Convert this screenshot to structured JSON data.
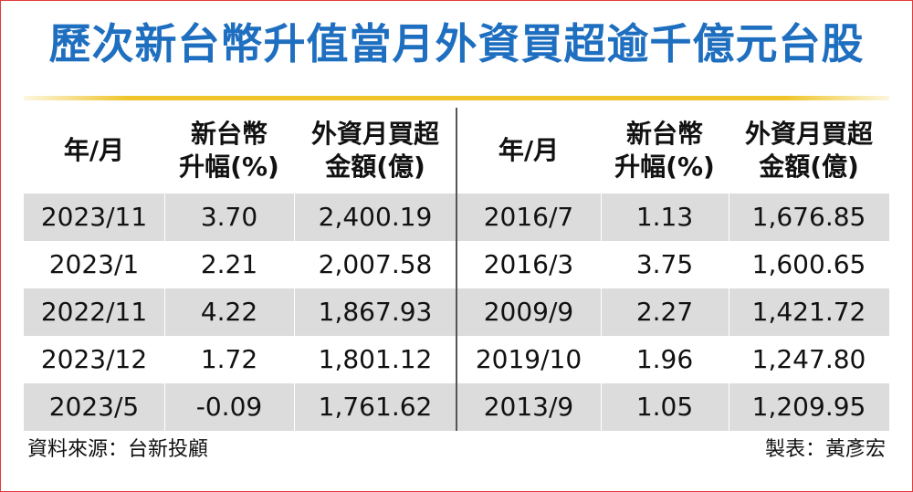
{
  "title": "歷次新台幣升值當月外資買超逾千億元台股",
  "headers": {
    "period": "年/月",
    "appreciation": "新台幣\n升幅(%)",
    "net_buy": "外資月買超\n金額(億)"
  },
  "left_rows": [
    {
      "period": "2023/11",
      "appreciation": "3.70",
      "net_buy": "2,400.19"
    },
    {
      "period": "2023/1",
      "appreciation": "2.21",
      "net_buy": "2,007.58"
    },
    {
      "period": "2022/11",
      "appreciation": "4.22",
      "net_buy": "1,867.93"
    },
    {
      "period": "2023/12",
      "appreciation": "1.72",
      "net_buy": "1,801.12"
    },
    {
      "period": "2023/5",
      "appreciation": "-0.09",
      "net_buy": "1,761.62"
    }
  ],
  "right_rows": [
    {
      "period": "2016/7",
      "appreciation": "1.13",
      "net_buy": "1,676.85"
    },
    {
      "period": "2016/3",
      "appreciation": "3.75",
      "net_buy": "1,600.65"
    },
    {
      "period": "2009/9",
      "appreciation": "2.27",
      "net_buy": "1,421.72"
    },
    {
      "period": "2019/10",
      "appreciation": "1.96",
      "net_buy": "1,247.80"
    },
    {
      "period": "2013/9",
      "appreciation": "1.05",
      "net_buy": "1,209.95"
    }
  ],
  "footer": {
    "source": "資料來源：台新投顧",
    "credit": "製表：黃彥宏"
  },
  "colors": {
    "title": "#1f6fc0",
    "rule": "#f0c428",
    "row_shade": "#dcdcdc",
    "border": "#e23a3a"
  }
}
